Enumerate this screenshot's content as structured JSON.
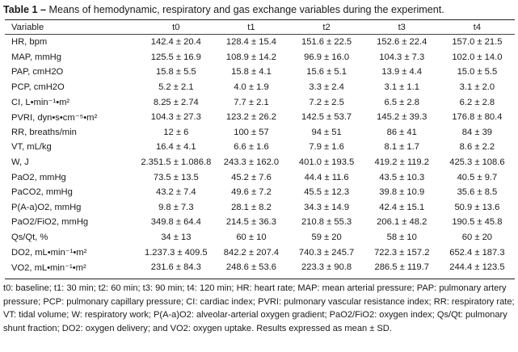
{
  "caption": {
    "label": "Table 1",
    "dash": " – ",
    "text": "Means of hemodynamic, respiratory and gas exchange variables during the experiment."
  },
  "table": {
    "headers": [
      "Variable",
      "t0",
      "t1",
      "t2",
      "t3",
      "t4"
    ],
    "rows": [
      [
        "HR, bpm",
        "142.4 ± 20.4",
        "128.4 ± 15.4",
        "151.6 ± 22.5",
        "152.6 ± 22.4",
        "157.0 ± 21.5"
      ],
      [
        "MAP, mmHg",
        "125.5 ± 16.9",
        "108.9 ± 14.2",
        "96.9 ± 16.0",
        "104.3 ± 7.3",
        "102.0 ± 14.0"
      ],
      [
        "PAP, cmH2O",
        "15.8 ± 5.5",
        "15.8 ± 4.1",
        "15.6 ± 5.1",
        "13.9 ± 4.4",
        "15.0 ± 5.5"
      ],
      [
        "PCP, cmH2O",
        "5.2 ± 2.1",
        "4.0 ± 1.9",
        "3.3 ± 2.4",
        "3.1 ± 1.1",
        "3.1 ± 2.0"
      ],
      [
        "CI, L•min⁻¹•m²",
        "8.25 ± 2.74",
        "7.7 ± 2.1",
        "7.2 ± 2.5",
        "6.5 ± 2.8",
        "6.2 ± 2.8"
      ],
      [
        "PVRI, dyn•s•cm⁻⁵•m²",
        "104.3 ± 27.3",
        "123.2 ± 26.2",
        "142.5 ± 53.7",
        "145.2 ± 39.3",
        "176.8 ± 80.4"
      ],
      [
        "RR, breaths/min",
        "12 ± 6",
        "100 ± 57",
        "94 ± 51",
        "86 ± 41",
        "84 ± 39"
      ],
      [
        "VT, mL/kg",
        "16.4 ± 4.1",
        "6.6 ± 1.6",
        "7.9 ± 1.6",
        "8.1 ± 1.7",
        "8.6 ± 2.2"
      ],
      [
        "W, J",
        "2.351.5 ± 1.086.8",
        "243.3 ± 162.0",
        "401.0 ± 193.5",
        "419.2 ± 119.2",
        "425.3 ± 108.6"
      ],
      [
        "PaO2, mmHg",
        "73.5 ± 13.5",
        "45.2 ± 7.6",
        "44.4 ± 11.6",
        "43.5 ± 10.3",
        "40.5 ± 9.7"
      ],
      [
        "PaCO2, mmHg",
        "43.2 ± 7.4",
        "49.6 ± 7.2",
        "45.5 ± 12.3",
        "39.8 ± 10.9",
        "35.6 ± 8.5"
      ],
      [
        "P(A-a)O2, mmHg",
        "9.8 ± 7.3",
        "28.1 ± 8.2",
        "34.3 ± 14.9",
        "42.4 ± 15.1",
        "50.9 ± 13.6"
      ],
      [
        "PaO2/FiO2, mmHg",
        "349.8 ± 64.4",
        "214.5 ± 36.3",
        "210.8 ± 55.3",
        "206.1 ± 48.2",
        "190.5 ± 45.8"
      ],
      [
        "Qs/Qt, %",
        "34 ± 13",
        "60 ± 10",
        "59 ± 20",
        "58 ± 10",
        "60 ± 20"
      ],
      [
        "DO2, mL•min⁻¹•m²",
        "1.237.3 ± 409.5",
        "842.2 ± 207.4",
        "740.3 ± 245.7",
        "722.3 ± 157.2",
        "652.4 ± 187.3"
      ],
      [
        "VO2, mL•min⁻¹•m²",
        "231.6 ± 84.3",
        "248.6 ± 53.6",
        "223.3 ± 90.8",
        "286.5 ± 119.7",
        "244.4 ± 123.5"
      ]
    ]
  },
  "footnote": "t0: baseline; t1: 30 min; t2: 60 min; t3: 90 min; t4: 120 min; HR: heart rate; MAP: mean arterial pressure; PAP: pulmonary artery pressure; PCP: pulmonary capillary pressure; CI: cardiac index; PVRI: pulmonary vascular resistance index; RR: respiratory rate; VT: tidal volume; W: respiratory work; P(A-a)O2: alveolar-arterial oxygen gradient; PaO2/FiO2: oxygen index; Qs/Qt: pulmonary shunt fraction; DO2: oxygen delivery; and VO2: oxygen uptake. Results expressed as mean ± SD."
}
